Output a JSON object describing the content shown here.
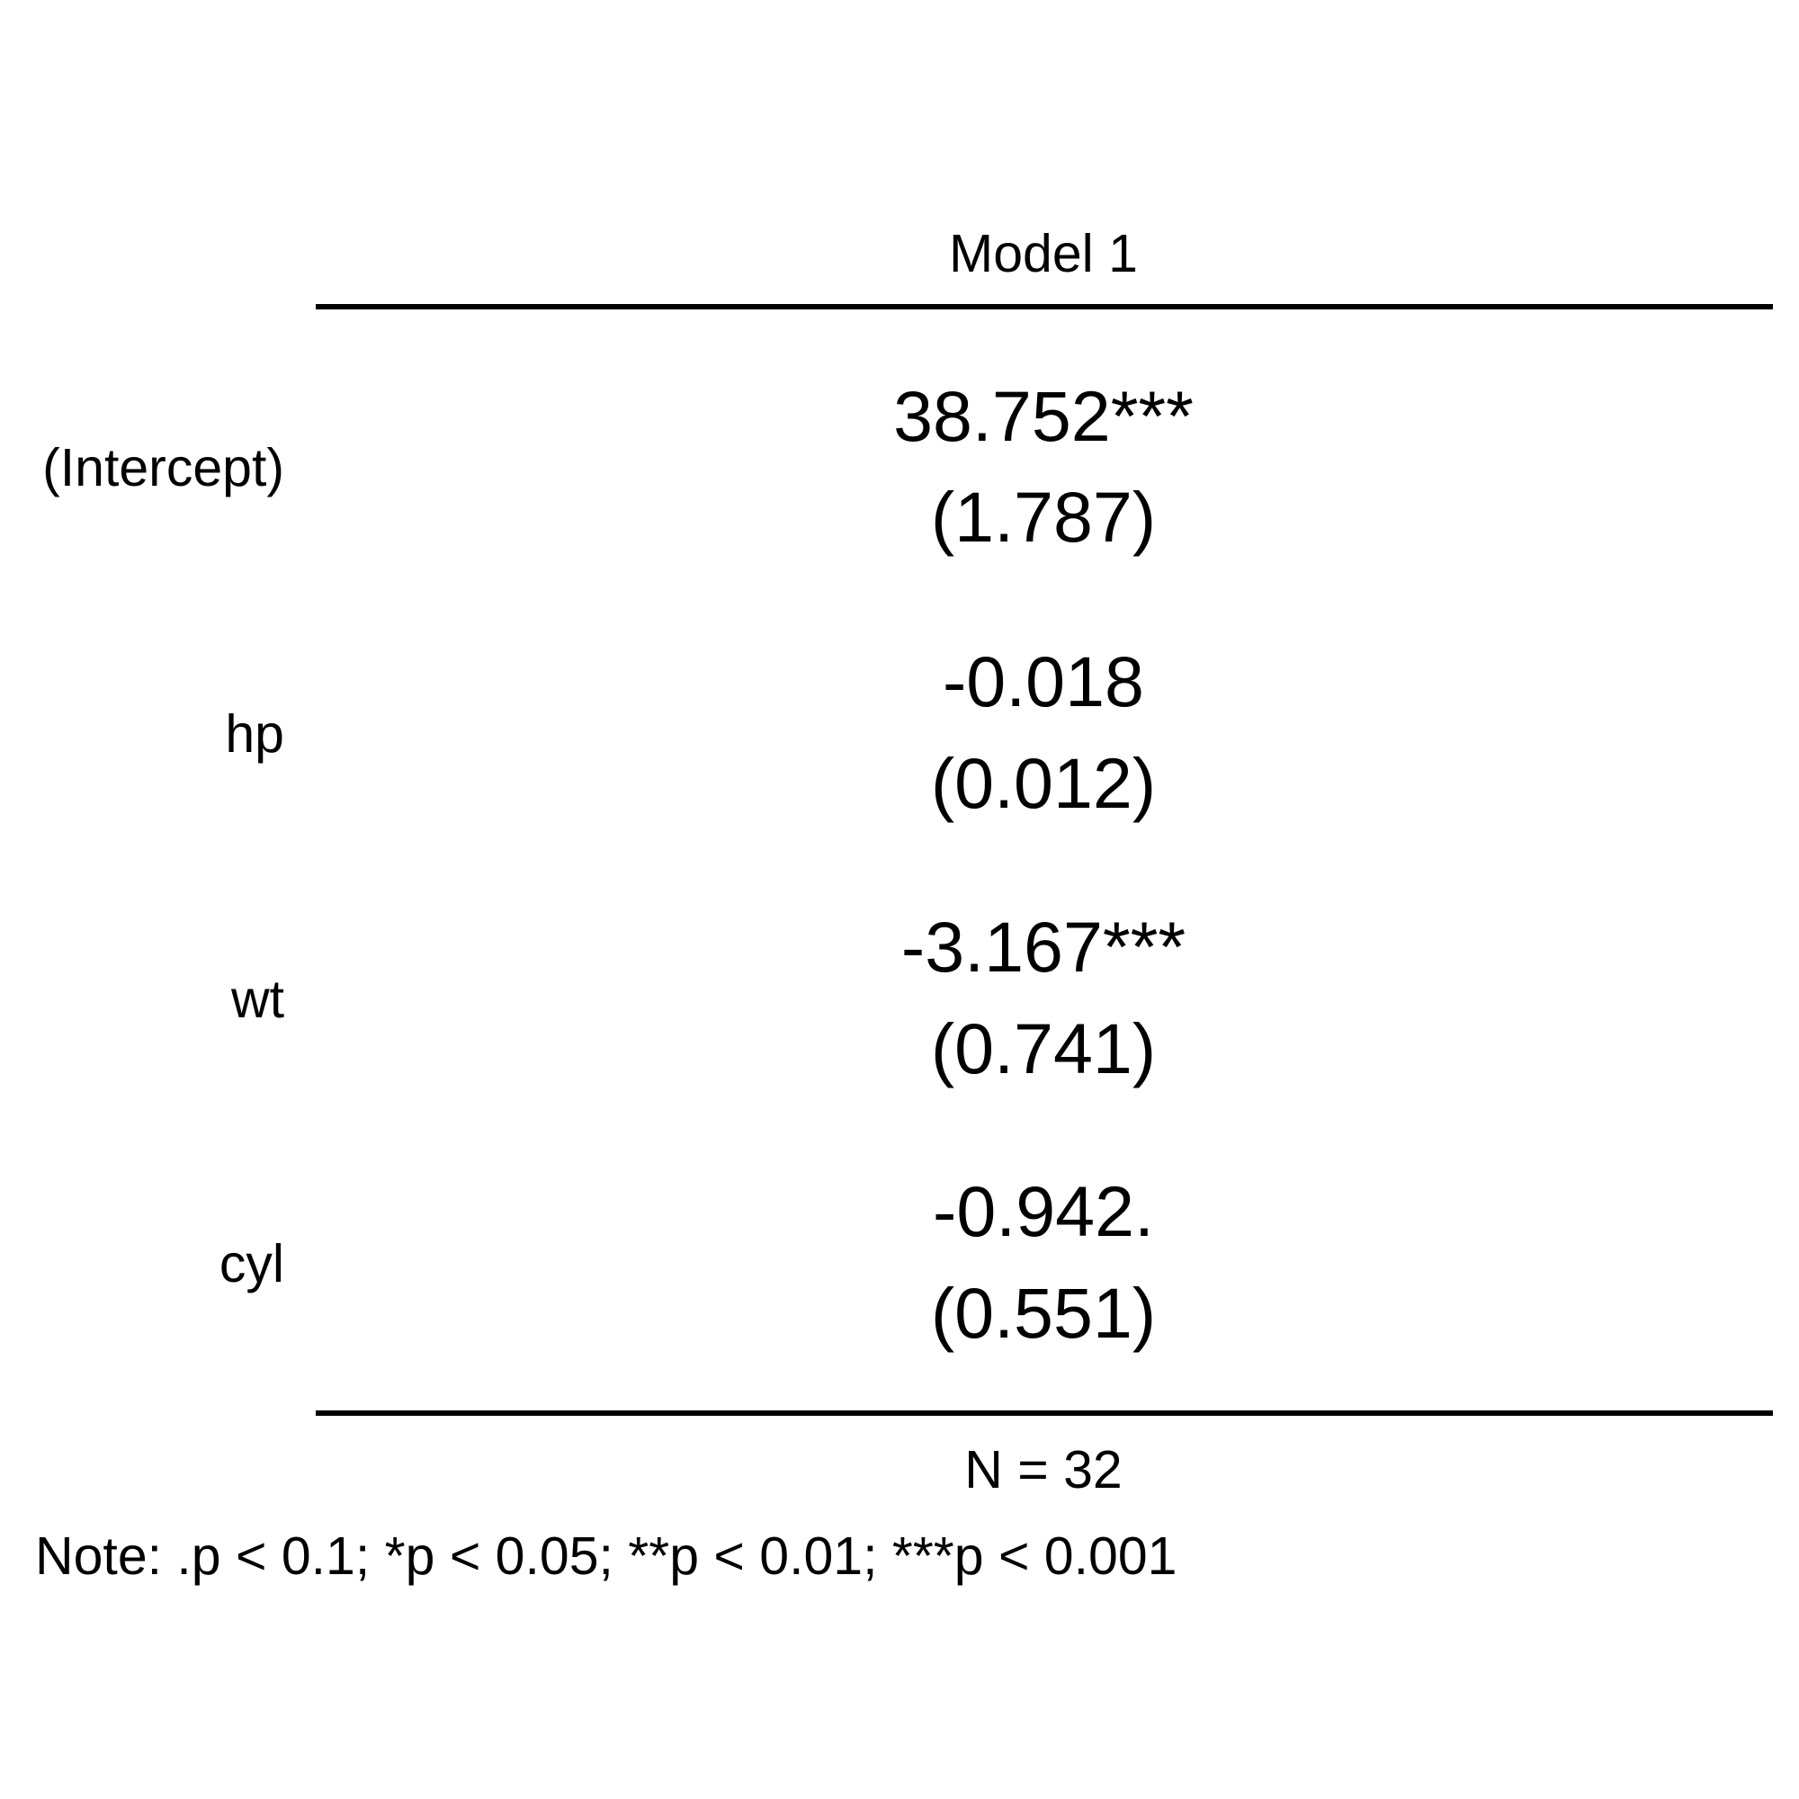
{
  "table": {
    "column_header": "Model 1",
    "rows": [
      {
        "label": "(Intercept)",
        "estimate": "38.752***",
        "se": "(1.787)"
      },
      {
        "label": "hp",
        "estimate": "-0.018",
        "se": "(0.012)"
      },
      {
        "label": "wt",
        "estimate": "-3.167***",
        "se": "(0.741)"
      },
      {
        "label": "cyl",
        "estimate": "-0.942.",
        "se": "(0.551)"
      }
    ],
    "n_stat": "N = 32",
    "note": "Note: .p < 0.1; *p < 0.05; **p < 0.01; ***p < 0.001"
  }
}
